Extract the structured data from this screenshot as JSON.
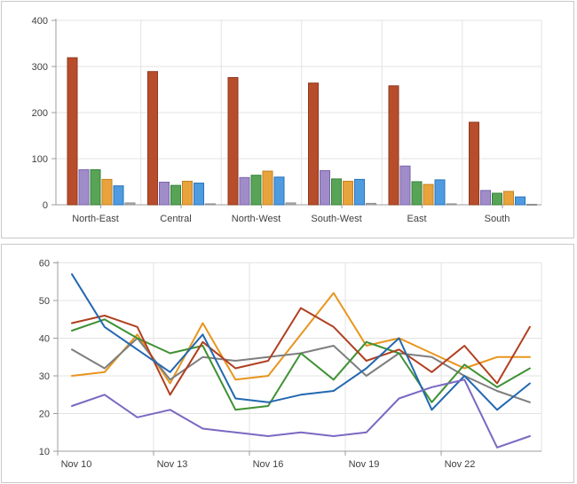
{
  "page": {
    "background": "#ffffff",
    "panel_border": "#c9c9c9",
    "grid_color": "#e3e3e3",
    "axis_color": "#9c9c9c",
    "label_color": "#3e3e3e"
  },
  "chart_data": [
    {
      "type": "bar",
      "title": "",
      "xlabel": "",
      "ylabel": "",
      "categories": [
        "North-East",
        "Central",
        "North-West",
        "South-West",
        "East",
        "South"
      ],
      "series": [
        {
          "name": "series-red",
          "fill": "#b84d2b",
          "stroke": "#8e3a1e",
          "values": [
            320,
            290,
            277,
            265,
            259,
            180
          ]
        },
        {
          "name": "series-purple",
          "fill": "#a08cc8",
          "stroke": "#7a64ae",
          "values": [
            77,
            50,
            60,
            75,
            85,
            32
          ]
        },
        {
          "name": "series-green",
          "fill": "#58a457",
          "stroke": "#37813a",
          "values": [
            77,
            43,
            65,
            57,
            51,
            26
          ]
        },
        {
          "name": "series-orange",
          "fill": "#e9a33c",
          "stroke": "#c68120",
          "values": [
            56,
            52,
            74,
            52,
            45,
            30
          ]
        },
        {
          "name": "series-blue",
          "fill": "#4f9be0",
          "stroke": "#2873bc",
          "values": [
            42,
            48,
            61,
            56,
            55,
            18
          ]
        },
        {
          "name": "series-gray",
          "fill": "#ababab",
          "stroke": "#8f8f8f",
          "values": [
            5,
            3,
            5,
            4,
            3,
            2
          ]
        }
      ],
      "ylim": [
        0,
        400
      ],
      "yticks": [
        0,
        100,
        200,
        300,
        400
      ],
      "grid": true,
      "legend": "none"
    },
    {
      "type": "line",
      "title": "",
      "xlabel": "",
      "ylabel": "",
      "x_tick_labels": [
        "Nov 10",
        "Nov 13",
        "Nov 16",
        "Nov 19",
        "Nov 22"
      ],
      "x_tick_step": 3,
      "num_points": 15,
      "x_days": [
        "Nov 10",
        "Nov 11",
        "Nov 12",
        "Nov 13",
        "Nov 14",
        "Nov 15",
        "Nov 16",
        "Nov 17",
        "Nov 18",
        "Nov 19",
        "Nov 20",
        "Nov 21",
        "Nov 22",
        "Nov 23",
        "Nov 24"
      ],
      "series": [
        {
          "name": "series-orange",
          "color": "#e8951d",
          "values": [
            30,
            31,
            41,
            28,
            44,
            29,
            30,
            41,
            52,
            38,
            40,
            36,
            32,
            35,
            35
          ]
        },
        {
          "name": "series-gray",
          "color": "#7e7e7e",
          "values": [
            37,
            32,
            40,
            29,
            35,
            34,
            35,
            36,
            38,
            30,
            36,
            35,
            30,
            26,
            23
          ]
        },
        {
          "name": "series-green",
          "color": "#3f9134",
          "values": [
            42,
            45,
            40,
            36,
            38,
            21,
            22,
            36,
            29,
            39,
            36,
            23,
            33,
            27,
            32
          ]
        },
        {
          "name": "series-red",
          "color": "#b04020",
          "values": [
            44,
            46,
            43,
            25,
            39,
            32,
            34,
            48,
            43,
            34,
            37,
            31,
            38,
            28,
            43
          ]
        },
        {
          "name": "series-blue",
          "color": "#2368b0",
          "values": [
            57,
            43,
            37,
            31,
            41,
            24,
            23,
            25,
            26,
            32,
            40,
            21,
            30,
            21,
            28
          ]
        },
        {
          "name": "series-purple",
          "color": "#7b68c2",
          "values": [
            22,
            25,
            19,
            21,
            16,
            15,
            14,
            15,
            14,
            15,
            24,
            27,
            29,
            11,
            14
          ]
        }
      ],
      "ylim": [
        10,
        60
      ],
      "yticks": [
        10,
        20,
        30,
        40,
        50,
        60
      ],
      "grid": true,
      "legend": "none"
    }
  ]
}
